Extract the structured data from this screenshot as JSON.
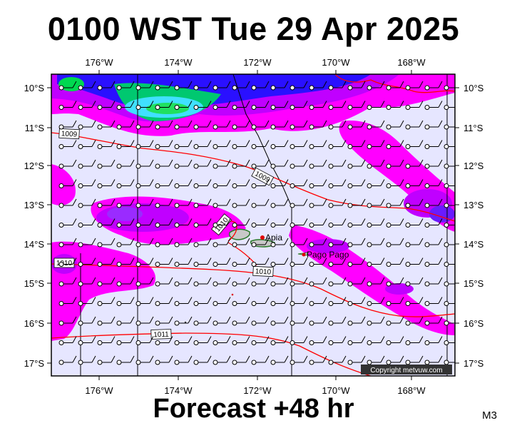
{
  "title": "0100 WST Tue 29 Apr 2025",
  "footer": "Forecast +48 hr",
  "model_code": "M3",
  "copyright": "Copyright metvuw.com",
  "lon_ticks": [
    "176°W",
    "174°W",
    "172°W",
    "170°W",
    "168°W"
  ],
  "lat_ticks": [
    "10°S",
    "11°S",
    "12°S",
    "13°S",
    "14°S",
    "15°S",
    "16°S",
    "17°S"
  ],
  "places": [
    "Apia",
    "Pago Pago"
  ],
  "isobar_labels": [
    "1009",
    "1009",
    "1010",
    "1010",
    "1010",
    "1011"
  ],
  "colors": {
    "background_precip_free": "#e6e6ff",
    "rain_light": "#ff00ff",
    "rain_moderate": "#c000ff",
    "rain_heavy": "#6a1bff",
    "rain_very_heavy": "#0a00c8",
    "rain_extreme": "#00c850",
    "isobar": "#ff0000",
    "land": "#bfbfbf",
    "town": "#dd0000"
  }
}
